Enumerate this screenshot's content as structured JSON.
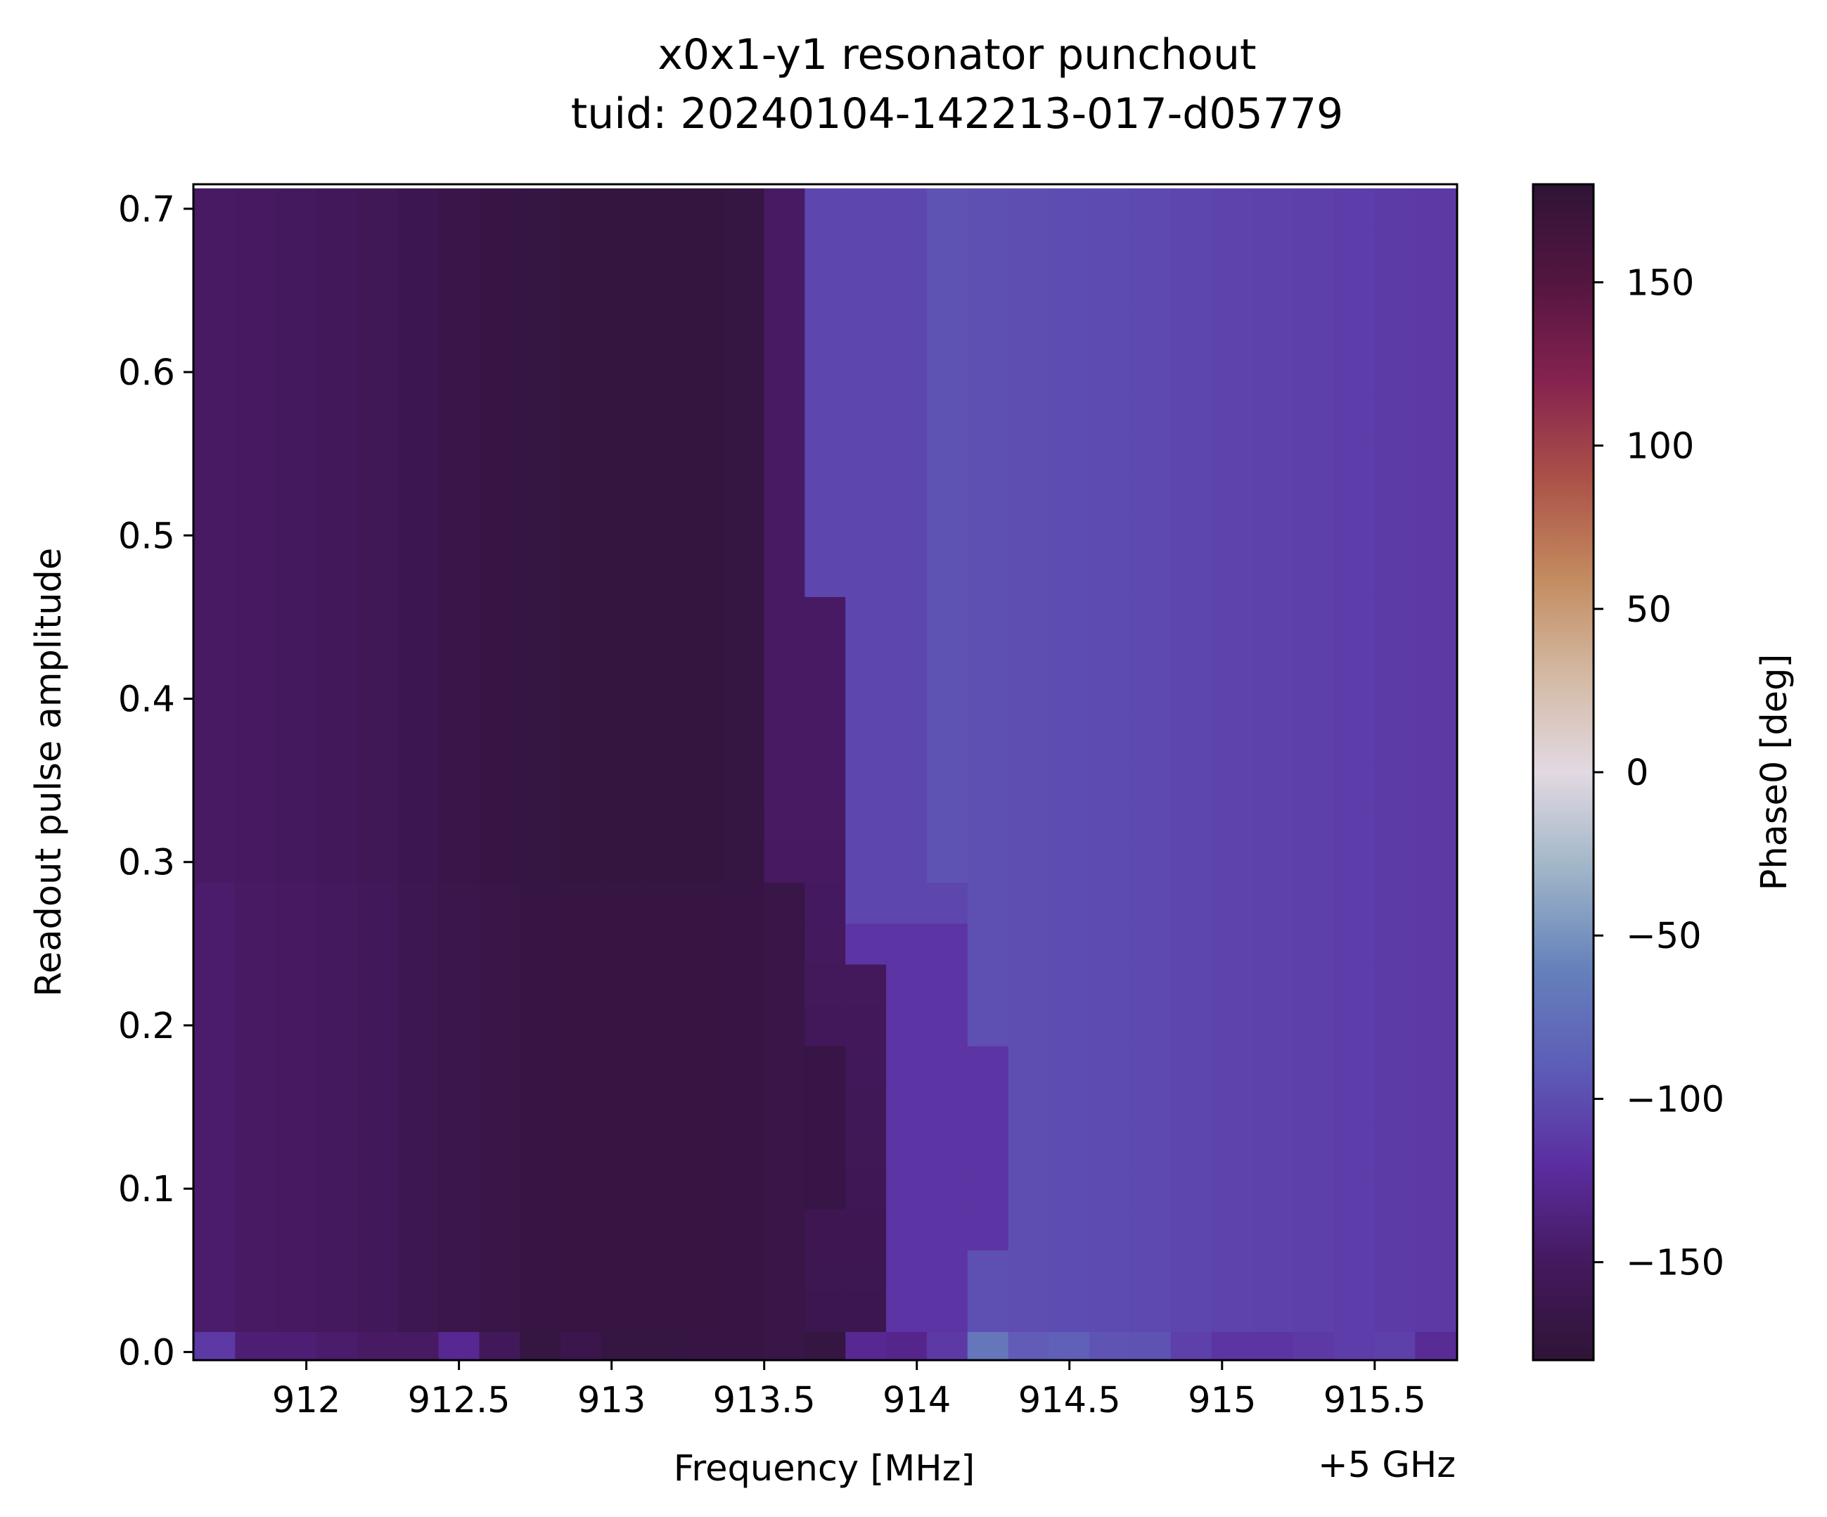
{
  "chart_data": {
    "type": "heatmap",
    "title": "x0x1-y1 resonator punchout",
    "subtitle": "tuid: 20240104-142213-017-d05779",
    "xlabel": "Frequency [MHz]",
    "x_offset_label": "+5 GHz",
    "ylabel": "Readout pulse amplitude",
    "colorbar_label": "Phase0 [deg]",
    "colormap": "twilight_shifted",
    "x_ticks": [
      "912",
      "912.5",
      "913",
      "913.5",
      "914",
      "914.5",
      "915",
      "915.5"
    ],
    "x_tick_values": [
      912,
      912.5,
      913,
      913.5,
      914,
      914.5,
      915,
      915.5
    ],
    "y_ticks": [
      "0.0",
      "0.1",
      "0.2",
      "0.3",
      "0.4",
      "0.5",
      "0.6",
      "0.7"
    ],
    "y_tick_values": [
      0.0,
      0.1,
      0.2,
      0.3,
      0.4,
      0.5,
      0.6,
      0.7
    ],
    "colorbar_ticks": [
      "150",
      "100",
      "50",
      "0",
      "−50",
      "−100",
      "−150"
    ],
    "colorbar_tick_values": [
      150,
      100,
      50,
      0,
      -50,
      -100,
      -150
    ],
    "xlim": [
      911.63,
      915.77
    ],
    "ylim": [
      -0.005,
      0.715
    ],
    "clim": [
      -180,
      180
    ],
    "x_start": 911.7,
    "x_step": 0.1333,
    "x_count": 31,
    "y_start": 0.0,
    "y_step": 0.025,
    "y_count": 29,
    "row_profile_deg": [
      -148,
      -150,
      -152,
      -154,
      -157,
      -161,
      -165,
      -168,
      -170,
      -171,
      -171,
      -171,
      -171,
      -170,
      -163,
      -122,
      -118,
      -117,
      -116,
      -117,
      -118,
      -119,
      -120,
      -121,
      -122,
      -123,
      -124,
      -125,
      -126,
      -127,
      -128
    ],
    "resonance_edge_ghz_offset": {
      "amp_0": 913.73,
      "amp_0.15": 913.85,
      "amp_0.3": 913.63,
      "amp_0.7": 913.55
    },
    "low_amp_row_phase_deg": [
      -128,
      -146,
      -146,
      -148,
      -150,
      -150,
      -138,
      -157,
      -172,
      -165,
      -172,
      -172,
      -170,
      -170,
      -168,
      -172,
      -138,
      -140,
      -128,
      -95,
      -110,
      -108,
      -115,
      -116,
      -125,
      -130,
      -130,
      -128,
      -126,
      -125,
      -136
    ]
  }
}
